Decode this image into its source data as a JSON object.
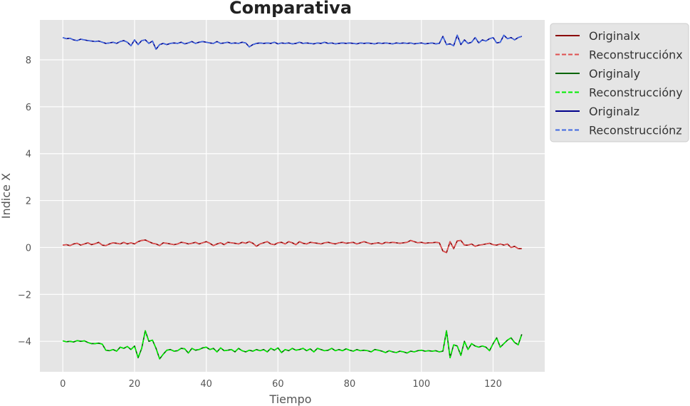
{
  "chart_data": {
    "type": "line",
    "title": "Comparativa",
    "xlabel": "Tiempo",
    "ylabel": "Indice X",
    "xlim": [
      -6.4,
      134.4
    ],
    "ylim": [
      -5.3,
      9.7
    ],
    "xticks": [
      0,
      20,
      40,
      60,
      80,
      100,
      120
    ],
    "yticks": [
      -4,
      -2,
      0,
      2,
      4,
      6,
      8
    ],
    "ytick_labels": [
      "−4",
      "−2",
      "0",
      "2",
      "4",
      "6",
      "8"
    ],
    "grid": true,
    "legend_position": "outside-top-right",
    "colors": {
      "background": "#e5e5e5",
      "grid": "#ffffff",
      "original_x": "#8b0000",
      "reconstruccion_x": "#e05050",
      "original_y": "#006400",
      "reconstruccion_y": "#00ee00",
      "original_z": "#00008b",
      "reconstruccion_z": "#4169e1"
    },
    "x": [
      0,
      1,
      2,
      3,
      4,
      5,
      6,
      7,
      8,
      9,
      10,
      11,
      12,
      13,
      14,
      15,
      16,
      17,
      18,
      19,
      20,
      21,
      22,
      23,
      24,
      25,
      26,
      27,
      28,
      29,
      30,
      31,
      32,
      33,
      34,
      35,
      36,
      37,
      38,
      39,
      40,
      41,
      42,
      43,
      44,
      45,
      46,
      47,
      48,
      49,
      50,
      51,
      52,
      53,
      54,
      55,
      56,
      57,
      58,
      59,
      60,
      61,
      62,
      63,
      64,
      65,
      66,
      67,
      68,
      69,
      70,
      71,
      72,
      73,
      74,
      75,
      76,
      77,
      78,
      79,
      80,
      81,
      82,
      83,
      84,
      85,
      86,
      87,
      88,
      89,
      90,
      91,
      92,
      93,
      94,
      95,
      96,
      97,
      98,
      99,
      100,
      101,
      102,
      103,
      104,
      105,
      106,
      107,
      108,
      109,
      110,
      111,
      112,
      113,
      114,
      115,
      116,
      117,
      118,
      119,
      120,
      121,
      122,
      123,
      124,
      125,
      126,
      127,
      128
    ],
    "series": [
      {
        "name": "Originalx",
        "style": "solid",
        "color_key": "original_x",
        "values": [
          0.1,
          0.12,
          0.08,
          0.15,
          0.18,
          0.1,
          0.15,
          0.2,
          0.12,
          0.16,
          0.22,
          0.1,
          0.08,
          0.15,
          0.2,
          0.18,
          0.15,
          0.22,
          0.15,
          0.2,
          0.15,
          0.25,
          0.3,
          0.32,
          0.25,
          0.18,
          0.15,
          0.08,
          0.2,
          0.18,
          0.15,
          0.12,
          0.15,
          0.22,
          0.2,
          0.15,
          0.18,
          0.22,
          0.15,
          0.2,
          0.25,
          0.18,
          0.08,
          0.15,
          0.2,
          0.12,
          0.22,
          0.2,
          0.18,
          0.15,
          0.22,
          0.18,
          0.25,
          0.18,
          0.05,
          0.15,
          0.2,
          0.25,
          0.15,
          0.12,
          0.2,
          0.22,
          0.15,
          0.25,
          0.2,
          0.12,
          0.25,
          0.18,
          0.15,
          0.22,
          0.2,
          0.18,
          0.15,
          0.2,
          0.22,
          0.18,
          0.15,
          0.2,
          0.22,
          0.18,
          0.2,
          0.22,
          0.15,
          0.2,
          0.25,
          0.2,
          0.15,
          0.18,
          0.2,
          0.15,
          0.22,
          0.2,
          0.22,
          0.2,
          0.18,
          0.2,
          0.22,
          0.3,
          0.25,
          0.2,
          0.22,
          0.18,
          0.2,
          0.2,
          0.22,
          0.2,
          -0.15,
          -0.22,
          0.25,
          -0.05,
          0.28,
          0.3,
          0.1,
          0.1,
          0.15,
          0.05,
          0.1,
          0.12,
          0.15,
          0.18,
          0.12,
          0.1,
          0.15,
          0.1,
          0.15,
          0.0,
          0.05,
          -0.05,
          -0.05
        ]
      },
      {
        "name": "Reconstrucciónx",
        "style": "dashed",
        "color_key": "reconstruccion_x",
        "values": [
          0.1,
          0.12,
          0.08,
          0.15,
          0.18,
          0.1,
          0.15,
          0.2,
          0.12,
          0.16,
          0.22,
          0.1,
          0.08,
          0.15,
          0.2,
          0.18,
          0.15,
          0.22,
          0.15,
          0.2,
          0.15,
          0.25,
          0.3,
          0.32,
          0.25,
          0.18,
          0.15,
          0.08,
          0.2,
          0.18,
          0.15,
          0.12,
          0.15,
          0.22,
          0.2,
          0.15,
          0.18,
          0.22,
          0.15,
          0.2,
          0.25,
          0.18,
          0.08,
          0.15,
          0.2,
          0.12,
          0.22,
          0.2,
          0.18,
          0.15,
          0.22,
          0.18,
          0.25,
          0.18,
          0.05,
          0.15,
          0.2,
          0.25,
          0.15,
          0.12,
          0.2,
          0.22,
          0.15,
          0.25,
          0.2,
          0.12,
          0.25,
          0.18,
          0.15,
          0.22,
          0.2,
          0.18,
          0.15,
          0.2,
          0.22,
          0.18,
          0.15,
          0.2,
          0.22,
          0.18,
          0.2,
          0.22,
          0.15,
          0.2,
          0.25,
          0.2,
          0.15,
          0.18,
          0.2,
          0.15,
          0.22,
          0.2,
          0.22,
          0.2,
          0.18,
          0.2,
          0.22,
          0.3,
          0.25,
          0.2,
          0.22,
          0.18,
          0.2,
          0.2,
          0.22,
          0.2,
          -0.15,
          -0.22,
          0.25,
          -0.05,
          0.28,
          0.3,
          0.1,
          0.1,
          0.15,
          0.05,
          0.1,
          0.12,
          0.15,
          0.18,
          0.12,
          0.1,
          0.15,
          0.1,
          0.15,
          0.0,
          0.05,
          -0.05,
          -0.05
        ]
      },
      {
        "name": "Originaly",
        "style": "solid",
        "color_key": "original_y",
        "values": [
          -3.98,
          -4.02,
          -4.0,
          -4.03,
          -3.97,
          -4.0,
          -3.98,
          -4.05,
          -4.1,
          -4.1,
          -4.08,
          -4.12,
          -4.38,
          -4.4,
          -4.35,
          -4.42,
          -4.25,
          -4.3,
          -4.22,
          -4.35,
          -4.2,
          -4.7,
          -4.3,
          -3.55,
          -4.0,
          -3.95,
          -4.3,
          -4.75,
          -4.55,
          -4.38,
          -4.35,
          -4.42,
          -4.4,
          -4.3,
          -4.32,
          -4.5,
          -4.3,
          -4.38,
          -4.35,
          -4.28,
          -4.25,
          -4.35,
          -4.3,
          -4.45,
          -4.28,
          -4.4,
          -4.38,
          -4.35,
          -4.45,
          -4.3,
          -4.4,
          -4.45,
          -4.38,
          -4.42,
          -4.35,
          -4.4,
          -4.35,
          -4.45,
          -4.3,
          -4.38,
          -4.28,
          -4.48,
          -4.35,
          -4.4,
          -4.3,
          -4.38,
          -4.35,
          -4.3,
          -4.4,
          -4.32,
          -4.45,
          -4.3,
          -4.35,
          -4.4,
          -4.38,
          -4.3,
          -4.4,
          -4.35,
          -4.4,
          -4.32,
          -4.38,
          -4.42,
          -4.35,
          -4.4,
          -4.38,
          -4.4,
          -4.45,
          -4.35,
          -4.38,
          -4.42,
          -4.48,
          -4.4,
          -4.45,
          -4.48,
          -4.42,
          -4.45,
          -4.5,
          -4.42,
          -4.45,
          -4.4,
          -4.38,
          -4.42,
          -4.4,
          -4.42,
          -4.4,
          -4.45,
          -4.42,
          -3.55,
          -4.7,
          -4.15,
          -4.2,
          -4.6,
          -4.0,
          -4.35,
          -4.1,
          -4.2,
          -4.25,
          -4.2,
          -4.25,
          -4.4,
          -4.1,
          -3.85,
          -4.25,
          -4.1,
          -3.95,
          -3.85,
          -4.05,
          -4.15,
          -3.7
        ]
      },
      {
        "name": "Reconstruccióny",
        "style": "dashed",
        "color_key": "reconstruccion_y",
        "values": [
          -3.98,
          -4.02,
          -4.0,
          -4.03,
          -3.97,
          -4.0,
          -3.98,
          -4.05,
          -4.1,
          -4.1,
          -4.08,
          -4.12,
          -4.38,
          -4.4,
          -4.35,
          -4.42,
          -4.25,
          -4.3,
          -4.22,
          -4.35,
          -4.2,
          -4.7,
          -4.3,
          -3.55,
          -4.0,
          -3.95,
          -4.3,
          -4.75,
          -4.55,
          -4.38,
          -4.35,
          -4.42,
          -4.4,
          -4.3,
          -4.32,
          -4.5,
          -4.3,
          -4.38,
          -4.35,
          -4.28,
          -4.25,
          -4.35,
          -4.3,
          -4.45,
          -4.28,
          -4.4,
          -4.38,
          -4.35,
          -4.45,
          -4.3,
          -4.4,
          -4.45,
          -4.38,
          -4.42,
          -4.35,
          -4.4,
          -4.35,
          -4.45,
          -4.3,
          -4.38,
          -4.28,
          -4.48,
          -4.35,
          -4.4,
          -4.3,
          -4.38,
          -4.35,
          -4.3,
          -4.4,
          -4.32,
          -4.45,
          -4.3,
          -4.35,
          -4.4,
          -4.38,
          -4.3,
          -4.4,
          -4.35,
          -4.4,
          -4.32,
          -4.38,
          -4.42,
          -4.35,
          -4.4,
          -4.38,
          -4.4,
          -4.45,
          -4.35,
          -4.38,
          -4.42,
          -4.48,
          -4.4,
          -4.45,
          -4.48,
          -4.42,
          -4.45,
          -4.5,
          -4.42,
          -4.45,
          -4.4,
          -4.38,
          -4.42,
          -4.4,
          -4.42,
          -4.4,
          -4.45,
          -4.42,
          -3.55,
          -4.7,
          -4.15,
          -4.2,
          -4.6,
          -4.0,
          -4.35,
          -4.1,
          -4.2,
          -4.25,
          -4.2,
          -4.25,
          -4.4,
          -4.1,
          -3.85,
          -4.25,
          -4.1,
          -3.95,
          -3.85,
          -4.05,
          -4.15,
          -3.7
        ]
      },
      {
        "name": "Originalz",
        "style": "solid",
        "color_key": "original_z",
        "values": [
          8.95,
          8.9,
          8.92,
          8.85,
          8.82,
          8.88,
          8.85,
          8.82,
          8.8,
          8.78,
          8.8,
          8.75,
          8.7,
          8.72,
          8.75,
          8.7,
          8.78,
          8.82,
          8.75,
          8.6,
          8.85,
          8.65,
          8.82,
          8.85,
          8.7,
          8.8,
          8.45,
          8.65,
          8.7,
          8.65,
          8.7,
          8.72,
          8.7,
          8.75,
          8.68,
          8.72,
          8.78,
          8.7,
          8.75,
          8.78,
          8.75,
          8.72,
          8.7,
          8.78,
          8.7,
          8.72,
          8.75,
          8.7,
          8.72,
          8.7,
          8.75,
          8.72,
          8.55,
          8.65,
          8.7,
          8.72,
          8.7,
          8.72,
          8.7,
          8.75,
          8.68,
          8.72,
          8.7,
          8.72,
          8.68,
          8.7,
          8.75,
          8.7,
          8.72,
          8.7,
          8.68,
          8.72,
          8.7,
          8.75,
          8.7,
          8.72,
          8.68,
          8.7,
          8.72,
          8.7,
          8.72,
          8.7,
          8.68,
          8.72,
          8.7,
          8.72,
          8.7,
          8.68,
          8.72,
          8.7,
          8.72,
          8.7,
          8.68,
          8.72,
          8.7,
          8.72,
          8.7,
          8.72,
          8.68,
          8.7,
          8.72,
          8.68,
          8.7,
          8.72,
          8.68,
          8.7,
          9.0,
          8.65,
          8.68,
          8.6,
          9.05,
          8.65,
          8.85,
          8.7,
          8.75,
          8.95,
          8.72,
          8.85,
          8.8,
          8.9,
          8.95,
          8.72,
          8.75,
          9.05,
          8.9,
          8.95,
          8.85,
          8.95,
          9.0
        ]
      },
      {
        "name": "Reconstrucciónz",
        "style": "dashed",
        "color_key": "reconstruccion_z",
        "values": [
          8.95,
          8.9,
          8.92,
          8.85,
          8.82,
          8.88,
          8.85,
          8.82,
          8.8,
          8.78,
          8.8,
          8.75,
          8.7,
          8.72,
          8.75,
          8.7,
          8.78,
          8.82,
          8.75,
          8.6,
          8.85,
          8.65,
          8.82,
          8.85,
          8.7,
          8.8,
          8.45,
          8.65,
          8.7,
          8.65,
          8.7,
          8.72,
          8.7,
          8.75,
          8.68,
          8.72,
          8.78,
          8.7,
          8.75,
          8.78,
          8.75,
          8.72,
          8.7,
          8.78,
          8.7,
          8.72,
          8.75,
          8.7,
          8.72,
          8.7,
          8.75,
          8.72,
          8.55,
          8.65,
          8.7,
          8.72,
          8.7,
          8.72,
          8.7,
          8.75,
          8.68,
          8.72,
          8.7,
          8.72,
          8.68,
          8.7,
          8.75,
          8.7,
          8.72,
          8.7,
          8.68,
          8.72,
          8.7,
          8.75,
          8.7,
          8.72,
          8.68,
          8.7,
          8.72,
          8.7,
          8.72,
          8.7,
          8.68,
          8.72,
          8.7,
          8.72,
          8.7,
          8.68,
          8.72,
          8.7,
          8.72,
          8.7,
          8.68,
          8.72,
          8.7,
          8.72,
          8.7,
          8.72,
          8.68,
          8.7,
          8.72,
          8.68,
          8.7,
          8.72,
          8.68,
          8.7,
          9.0,
          8.65,
          8.68,
          8.6,
          9.05,
          8.65,
          8.85,
          8.7,
          8.75,
          8.95,
          8.72,
          8.85,
          8.8,
          8.9,
          8.95,
          8.72,
          8.75,
          9.05,
          8.9,
          8.95,
          8.85,
          8.95,
          9.0
        ]
      }
    ]
  }
}
